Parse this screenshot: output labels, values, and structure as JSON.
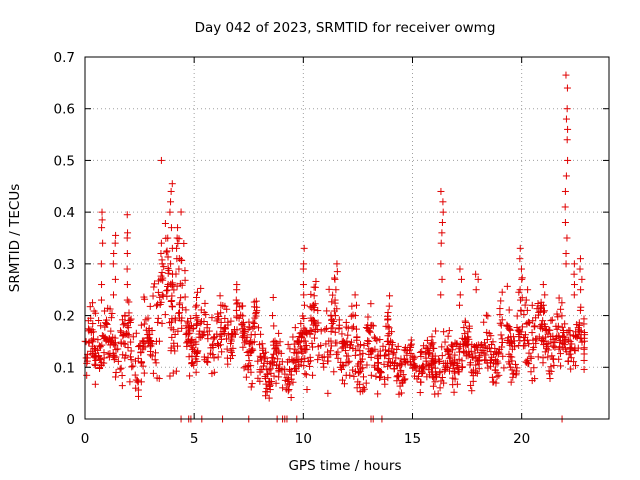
{
  "chart_data": {
    "type": "scatter",
    "title": "Day 042 of 2023, SRMTID for receiver owmg",
    "xlabel": "GPS time / hours",
    "ylabel": "SRMTID / TECUs",
    "xlim": [
      0,
      24
    ],
    "ylim": [
      0,
      0.7
    ],
    "xticks": [
      "0",
      "5",
      "10",
      "15",
      "20"
    ],
    "xtick_values": [
      0,
      5,
      10,
      15,
      20
    ],
    "yticks": [
      "0",
      "0.1",
      "0.2",
      "0.3",
      "0.4",
      "0.5",
      "0.6",
      "0.7"
    ],
    "ytick_values": [
      0,
      0.1,
      0.2,
      0.3,
      0.4,
      0.5,
      0.6,
      0.7
    ],
    "grid": true,
    "marker": "+",
    "color": "#e00000",
    "zero_value_times": [
      4.4,
      4.75,
      4.85,
      5.35,
      6.3,
      7.5,
      8.8,
      9.05,
      9.15,
      9.25,
      9.7,
      13.1,
      13.2,
      13.6,
      21.85
    ],
    "segments": [
      {
        "t0": 0.0,
        "t1": 1.6,
        "base": 0.14,
        "spread": 0.05
      },
      {
        "t0": 1.6,
        "t1": 3.1,
        "base": 0.14,
        "spread": 0.05
      },
      {
        "t0": 3.1,
        "t1": 4.6,
        "base": 0.24,
        "spread": 0.09
      },
      {
        "t0": 4.6,
        "t1": 6.0,
        "base": 0.16,
        "spread": 0.05
      },
      {
        "t0": 6.0,
        "t1": 7.9,
        "base": 0.16,
        "spread": 0.05
      },
      {
        "t0": 7.9,
        "t1": 9.8,
        "base": 0.1,
        "spread": 0.04
      },
      {
        "t0": 9.8,
        "t1": 12.0,
        "base": 0.16,
        "spread": 0.06
      },
      {
        "t0": 12.0,
        "t1": 14.0,
        "base": 0.13,
        "spread": 0.05
      },
      {
        "t0": 14.0,
        "t1": 16.0,
        "base": 0.11,
        "spread": 0.03
      },
      {
        "t0": 16.0,
        "t1": 17.0,
        "base": 0.12,
        "spread": 0.04
      },
      {
        "t0": 17.0,
        "t1": 19.0,
        "base": 0.13,
        "spread": 0.04
      },
      {
        "t0": 19.0,
        "t1": 21.0,
        "base": 0.15,
        "spread": 0.06
      },
      {
        "t0": 21.0,
        "t1": 22.9,
        "base": 0.15,
        "spread": 0.04
      }
    ],
    "peaks": [
      {
        "t": 0.8,
        "values": [
          0.4,
          0.385,
          0.37,
          0.34,
          0.3,
          0.26,
          0.23
        ]
      },
      {
        "t": 1.35,
        "values": [
          0.355,
          0.34,
          0.32,
          0.3,
          0.27,
          0.24
        ]
      },
      {
        "t": 1.95,
        "values": [
          0.395,
          0.36,
          0.35,
          0.32,
          0.29,
          0.26,
          0.23
        ]
      },
      {
        "t": 3.5,
        "values": [
          0.5,
          0.34,
          0.32,
          0.3,
          0.27,
          0.24
        ]
      },
      {
        "t": 3.95,
        "values": [
          0.455,
          0.44,
          0.42,
          0.4,
          0.37,
          0.33,
          0.3,
          0.28,
          0.26
        ]
      },
      {
        "t": 4.25,
        "values": [
          0.37,
          0.35,
          0.33,
          0.31,
          0.29
        ]
      },
      {
        "t": 5.1,
        "values": [
          0.245,
          0.235,
          0.22,
          0.2
        ]
      },
      {
        "t": 6.95,
        "values": [
          0.26,
          0.25,
          0.23,
          0.21
        ]
      },
      {
        "t": 8.6,
        "values": [
          0.235,
          0.2,
          0.18
        ]
      },
      {
        "t": 10.0,
        "values": [
          0.33,
          0.3,
          0.29,
          0.26,
          0.24,
          0.22
        ]
      },
      {
        "t": 11.5,
        "values": [
          0.3,
          0.285,
          0.27,
          0.25,
          0.23,
          0.2
        ]
      },
      {
        "t": 12.4,
        "values": [
          0.24,
          0.22,
          0.2
        ]
      },
      {
        "t": 16.35,
        "values": [
          0.44,
          0.42,
          0.4,
          0.38,
          0.36,
          0.34,
          0.3,
          0.27,
          0.24
        ]
      },
      {
        "t": 17.2,
        "values": [
          0.29,
          0.27,
          0.24,
          0.22
        ]
      },
      {
        "t": 17.95,
        "values": [
          0.28,
          0.27,
          0.25
        ]
      },
      {
        "t": 19.95,
        "values": [
          0.33,
          0.31,
          0.29,
          0.27,
          0.25,
          0.23
        ]
      },
      {
        "t": 20.25,
        "values": [
          0.25,
          0.23,
          0.21
        ]
      },
      {
        "t": 21.05,
        "values": [
          0.26,
          0.24,
          0.22
        ]
      },
      {
        "t": 22.05,
        "values": [
          0.665,
          0.64,
          0.6,
          0.58,
          0.56,
          0.54,
          0.5,
          0.47,
          0.44,
          0.41,
          0.38,
          0.35,
          0.32,
          0.3
        ]
      },
      {
        "t": 22.45,
        "values": [
          0.3,
          0.28,
          0.26,
          0.24
        ]
      },
      {
        "t": 22.7,
        "values": [
          0.31,
          0.29,
          0.27,
          0.25,
          0.21
        ]
      }
    ]
  }
}
